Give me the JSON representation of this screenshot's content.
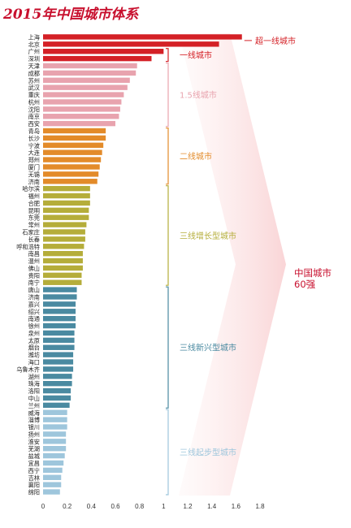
{
  "chart_data": {
    "type": "bar",
    "orientation": "horizontal",
    "title": "2015年中国城市体系",
    "categories": [
      "上海",
      "北京",
      "广州",
      "深圳",
      "天津",
      "成都",
      "苏州",
      "武汉",
      "重庆",
      "杭州",
      "沈阳",
      "南京",
      "西安",
      "青岛",
      "长沙",
      "宁波",
      "大连",
      "郑州",
      "厦门",
      "无锡",
      "济南",
      "哈尔滨",
      "福州",
      "合肥",
      "昆明",
      "东莞",
      "常州",
      "石家庄",
      "长春",
      "呼和浩特",
      "南昌",
      "温州",
      "佛山",
      "贵阳",
      "南宁",
      "唐山",
      "济南",
      "嘉兴",
      "绍兴",
      "南通",
      "徐州",
      "泉州",
      "太原",
      "烟台",
      "潍坊",
      "海口",
      "乌鲁木齐",
      "湖州",
      "珠海",
      "洛阳",
      "中山",
      "兰州",
      "威海",
      "淄博",
      "银川",
      "扬州",
      "淮安",
      "芜湖",
      "盐城",
      "宜昌",
      "西宁",
      "吉林",
      "襄阳",
      "绵阳"
    ],
    "values": [
      1.65,
      1.46,
      1.0,
      0.9,
      0.78,
      0.77,
      0.72,
      0.7,
      0.67,
      0.65,
      0.64,
      0.63,
      0.6,
      0.52,
      0.52,
      0.5,
      0.49,
      0.48,
      0.47,
      0.46,
      0.45,
      0.39,
      0.39,
      0.39,
      0.38,
      0.38,
      0.36,
      0.35,
      0.35,
      0.34,
      0.33,
      0.33,
      0.33,
      0.32,
      0.32,
      0.28,
      0.28,
      0.27,
      0.27,
      0.27,
      0.27,
      0.26,
      0.26,
      0.26,
      0.25,
      0.25,
      0.25,
      0.24,
      0.24,
      0.23,
      0.23,
      0.22,
      0.2,
      0.2,
      0.2,
      0.19,
      0.19,
      0.19,
      0.18,
      0.17,
      0.16,
      0.15,
      0.15,
      0.14
    ],
    "xlim": [
      0,
      1.8
    ],
    "xticks": [
      "0",
      "0.2",
      "0.4",
      "0.6",
      "0.8",
      "1",
      "1.2",
      "1.4",
      "1.6",
      "1.8"
    ],
    "tiers": [
      {
        "name": "超一线城市",
        "start": 0,
        "end": 1,
        "color": "#d42026"
      },
      {
        "name": "一线城市",
        "start": 2,
        "end": 3,
        "color": "#d42026"
      },
      {
        "name": "1.5线城市",
        "start": 4,
        "end": 12,
        "color": "#e8a3ae"
      },
      {
        "name": "二线城市",
        "start": 13,
        "end": 20,
        "color": "#e38b2a"
      },
      {
        "name": "三线增长型城市",
        "start": 21,
        "end": 34,
        "color": "#b5ad3a"
      },
      {
        "name": "三线新兴型城市",
        "start": 35,
        "end": 51,
        "color": "#4a8aa1"
      },
      {
        "name": "三线起步型城市",
        "start": 52,
        "end": 63,
        "color": "#9ec6dc"
      }
    ],
    "group_label": [
      "中国城市",
      "60强"
    ],
    "group_label_color": "#c8102e"
  }
}
